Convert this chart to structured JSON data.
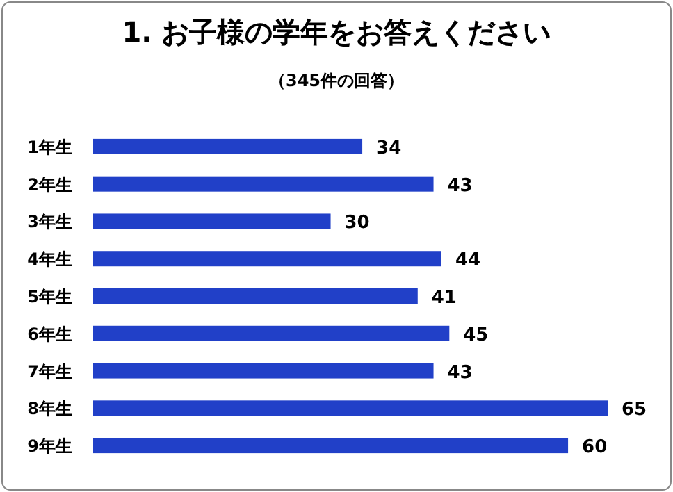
{
  "chart_data": {
    "type": "bar",
    "orientation": "horizontal",
    "title": "1. お子様の学年をお答えください",
    "subtitle": "（345件の回答）",
    "categories": [
      "1年生",
      "2年生",
      "3年生",
      "4年生",
      "5年生",
      "6年生",
      "7年生",
      "8年生",
      "9年生"
    ],
    "values": [
      34,
      43,
      30,
      44,
      41,
      45,
      43,
      65,
      60
    ],
    "color": "#2140c8",
    "data_labels": true
  }
}
